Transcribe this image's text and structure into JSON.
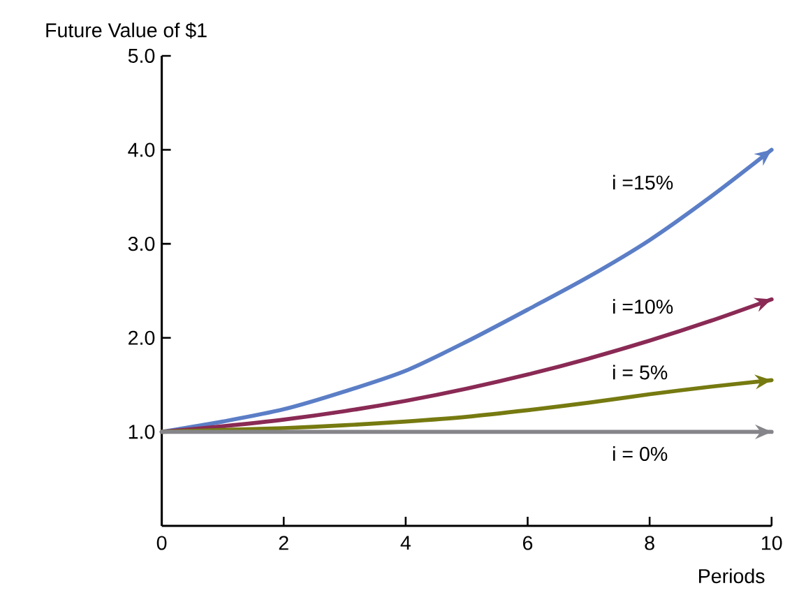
{
  "chart_data": {
    "type": "line",
    "ylabel": "Future Value of $1",
    "xlabel": "Periods",
    "x": [
      0,
      1,
      2,
      3,
      4,
      5,
      6,
      7,
      8,
      9,
      10
    ],
    "series": [
      {
        "name": "i =15%",
        "color": "#5b7ec6",
        "values": [
          1.0,
          1.11,
          1.24,
          1.43,
          1.65,
          1.96,
          2.3,
          2.65,
          3.04,
          3.5,
          4.0
        ]
      },
      {
        "name": "i =10%",
        "color": "#8a2a55",
        "values": [
          1.0,
          1.06,
          1.13,
          1.22,
          1.33,
          1.46,
          1.61,
          1.78,
          1.97,
          2.18,
          2.41
        ]
      },
      {
        "name": "i = 5%",
        "color": "#767a10",
        "values": [
          1.0,
          1.02,
          1.04,
          1.07,
          1.11,
          1.16,
          1.23,
          1.31,
          1.4,
          1.48,
          1.55
        ]
      },
      {
        "name": "i = 0%",
        "color": "#85858a",
        "values": [
          1.0,
          1.0,
          1.0,
          1.0,
          1.0,
          1.0,
          1.0,
          1.0,
          1.0,
          1.0,
          1.0
        ]
      }
    ],
    "xlim": [
      0,
      10
    ],
    "ylim": [
      0,
      5
    ],
    "xticks": [
      0,
      2,
      4,
      6,
      8,
      10
    ],
    "yticks": [
      {
        "value": 1,
        "label": "1.0"
      },
      {
        "value": 2,
        "label": "2.0"
      },
      {
        "value": 3,
        "label": "3.0"
      },
      {
        "value": 4,
        "label": "4.0"
      },
      {
        "value": 5,
        "label": "5.0"
      }
    ],
    "grid": false,
    "legend": false,
    "marker": "none",
    "line_style": "solid"
  }
}
